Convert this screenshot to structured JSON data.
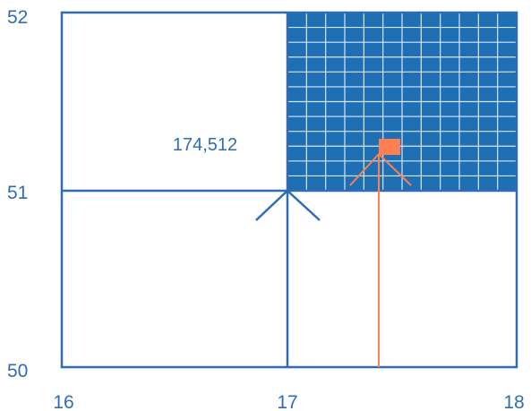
{
  "axes": {
    "x_ticks": [
      "16",
      "17",
      "18"
    ],
    "y_ticks": [
      "52",
      "51",
      "50"
    ]
  },
  "cell_label": "174,512",
  "colors": {
    "frame": "#2f6db0",
    "highlight_fill": "#1f6fb5",
    "subgrid_line": "#d9e6f3",
    "marker": "#ff7f50",
    "label_text": "#2f6db0"
  }
}
